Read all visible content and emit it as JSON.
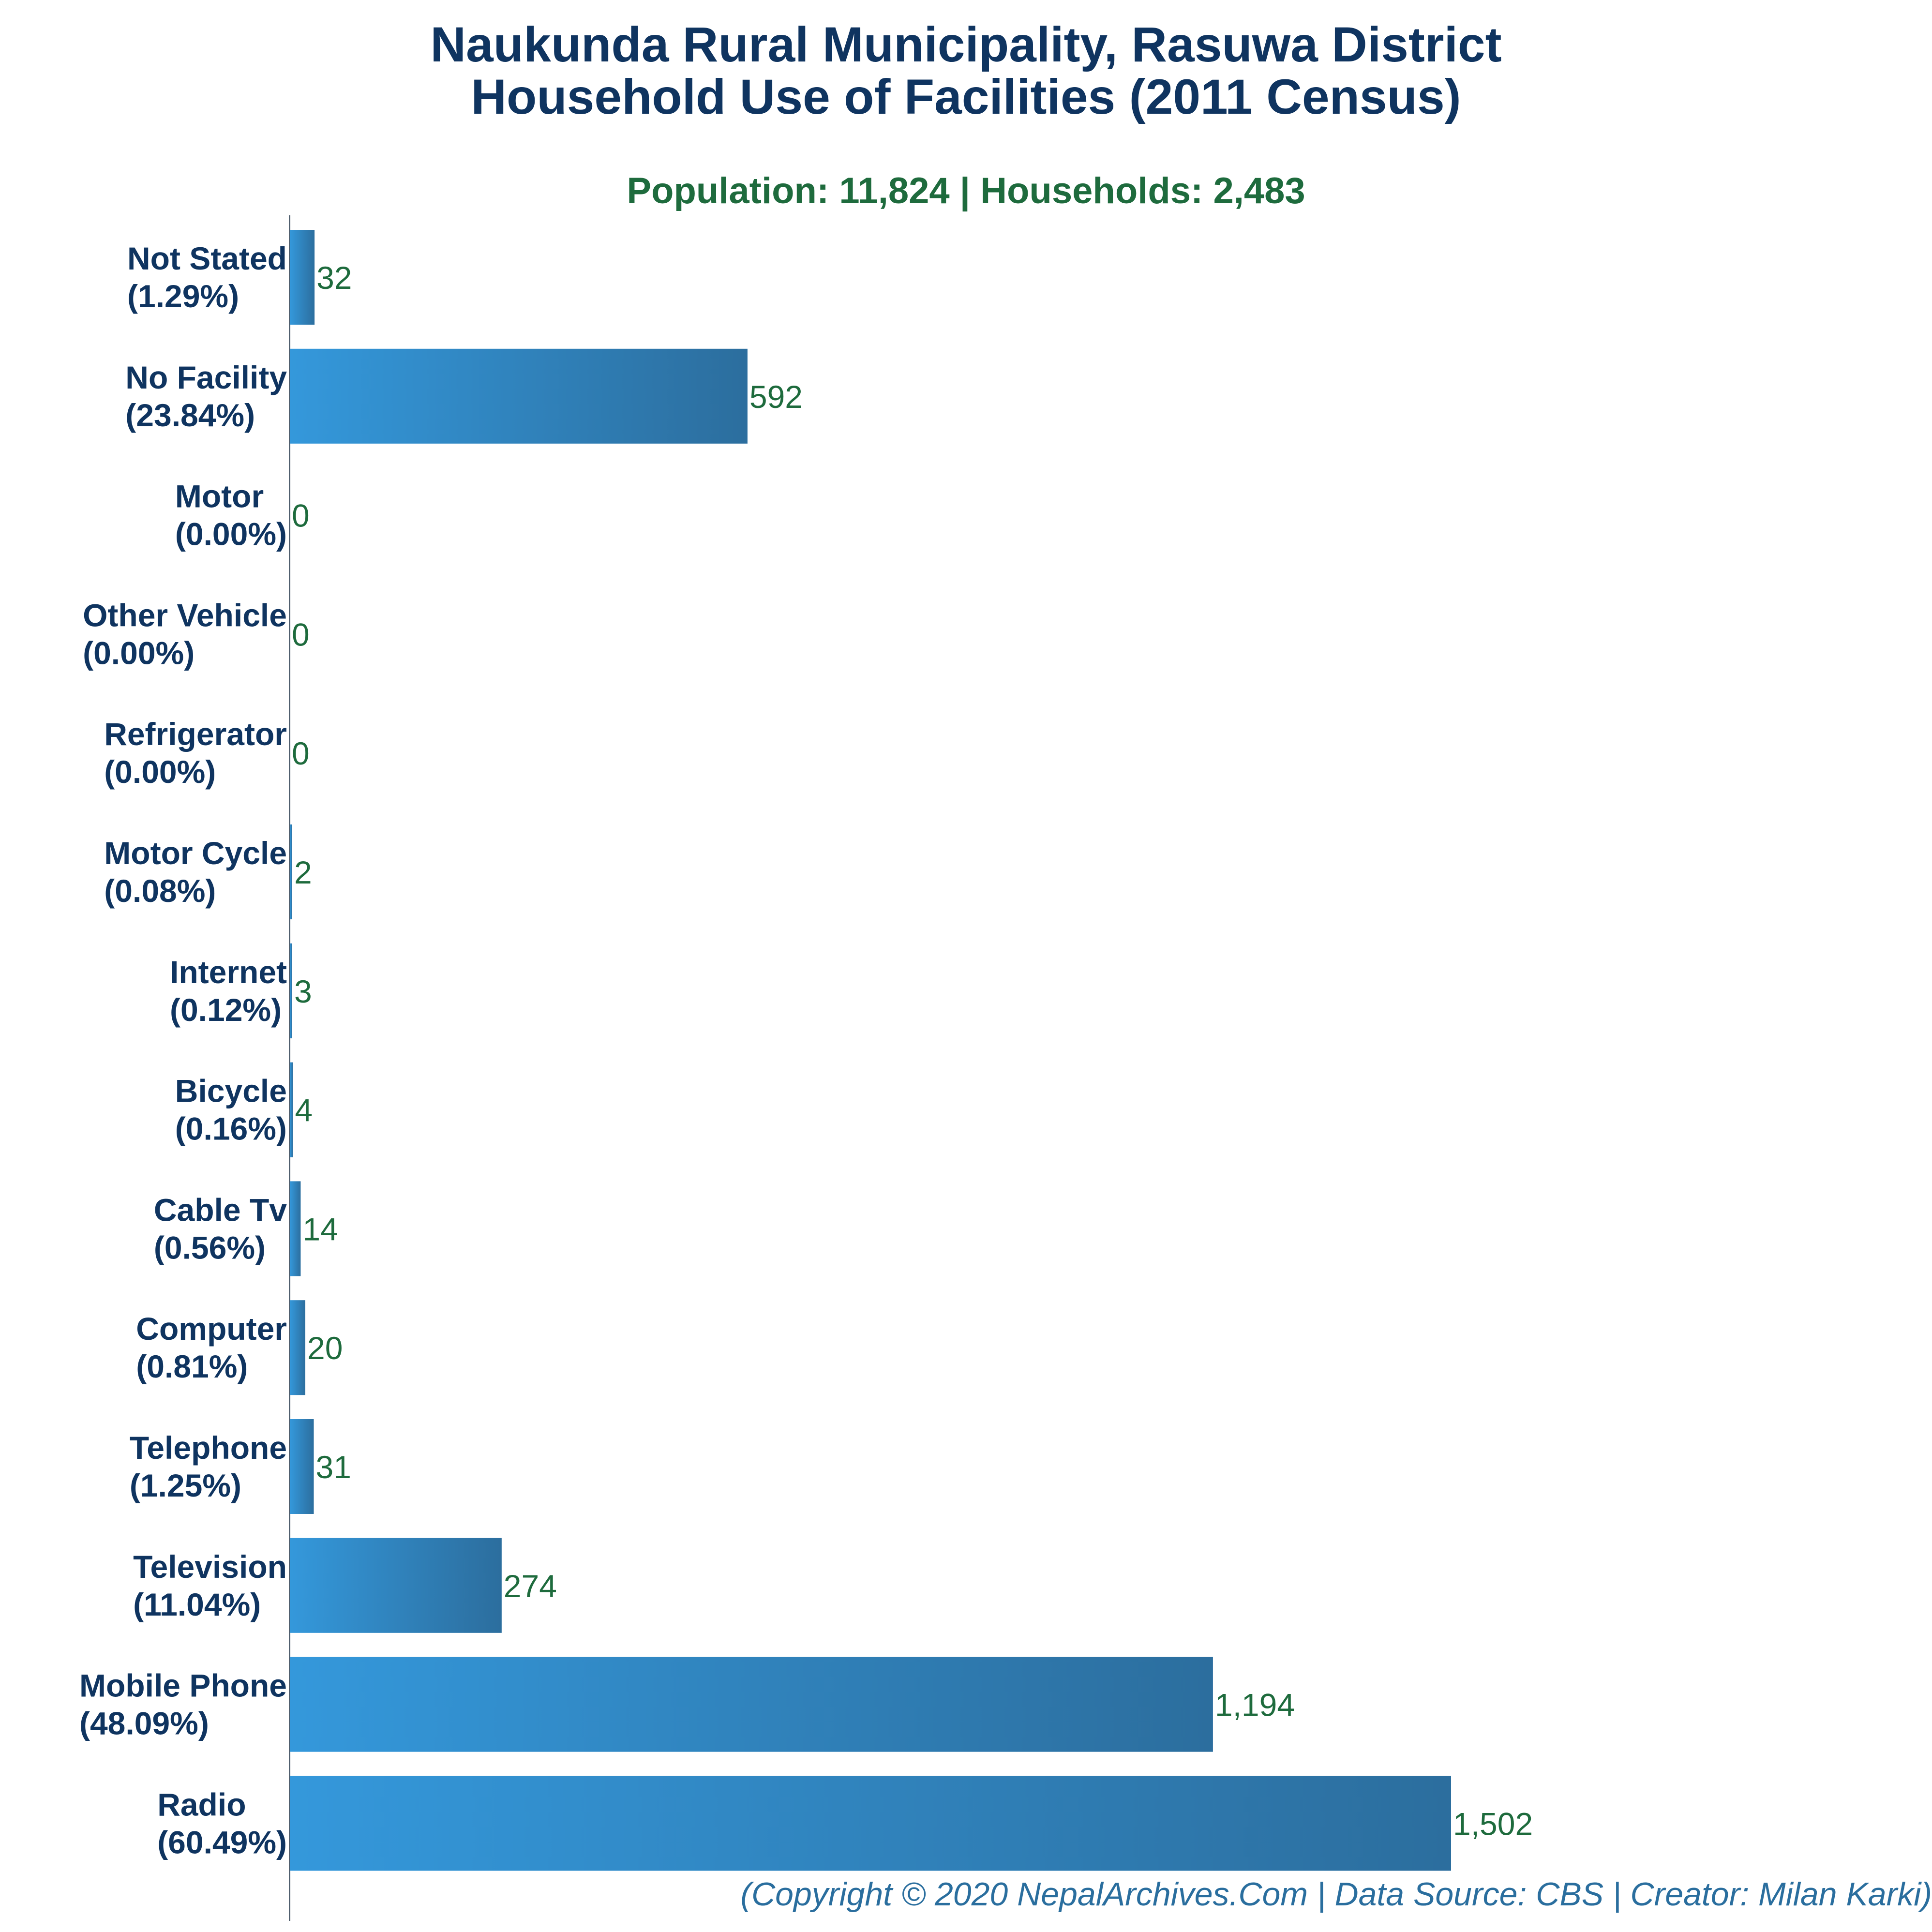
{
  "title_line1": "Naukunda Rural Municipality, Rasuwa District",
  "title_line2": "Household Use of Facilities (2011 Census)",
  "subtitle": "Population: 11,824 | Households: 2,483",
  "footer": "(Copyright © 2020 NepalArchives.Com | Data Source: CBS | Creator: Milan Karki)",
  "colors": {
    "bar_light": "#3498db",
    "bar_dark": "#2c6e9e",
    "title": "#0f3460",
    "value_label": "#1e6b3d",
    "footer": "#2a6e9e"
  },
  "chart_data": {
    "type": "bar",
    "orientation": "horizontal",
    "title": "Naukunda Rural Municipality, Rasuwa District Household Use of Facilities (2011 Census)",
    "categories": [
      "Not Stated",
      "No Facility",
      "Motor",
      "Other Vehicle",
      "Refrigerator",
      "Motor Cycle",
      "Internet",
      "Bicycle",
      "Cable Tv",
      "Computer",
      "Telephone",
      "Television",
      "Mobile Phone",
      "Radio"
    ],
    "percent_labels": [
      "(1.29%)",
      "(23.84%)",
      "(0.00%)",
      "(0.00%)",
      "(0.00%)",
      "(0.08%)",
      "(0.12%)",
      "(0.16%)",
      "(0.56%)",
      "(0.81%)",
      "(1.25%)",
      "(11.04%)",
      "(48.09%)",
      "(60.49%)"
    ],
    "values": [
      32,
      592,
      0,
      0,
      0,
      2,
      3,
      4,
      14,
      20,
      31,
      274,
      1194,
      1502
    ],
    "value_labels": [
      "32",
      "592",
      "0",
      "0",
      "0",
      "2",
      "3",
      "4",
      "14",
      "20",
      "31",
      "274",
      "1,194",
      "1,502"
    ],
    "xlim": [
      0,
      1502
    ],
    "grid": false,
    "legend": "none"
  }
}
